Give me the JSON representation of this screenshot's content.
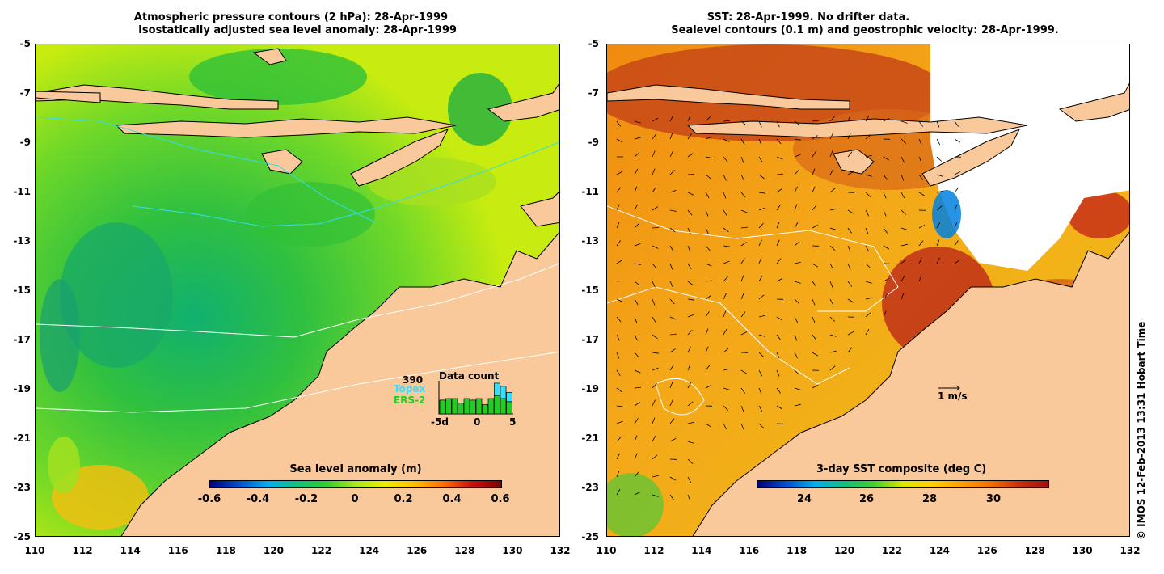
{
  "left_panel": {
    "title_line1": "Atmospheric pressure contours (2 hPa): 28-Apr-1999",
    "title_line2": "Isostatically adjusted sea level anomaly: 28-Apr-1999",
    "colorbar_title": "Sea level anomaly (m)",
    "colorbar_ticks": [
      "-0.6",
      "-0.4",
      "-0.2",
      "0",
      "0.2",
      "0.4",
      "0.6"
    ],
    "data_count": {
      "title": "Data count",
      "max_label": "390",
      "topex_label": "Topex",
      "ers2_label": "ERS-2",
      "x_ticks": [
        "-5d",
        "0",
        "5"
      ],
      "topex_values": [
        0,
        0,
        0,
        0,
        0,
        0,
        0,
        0,
        0,
        1.0,
        0.9,
        0.7
      ],
      "ers2_values": [
        0.45,
        0.5,
        0.5,
        0.35,
        0.5,
        0.45,
        0.5,
        0.3,
        0.5,
        0.6,
        0.5,
        0.4
      ],
      "colors": {
        "topex": "#33e0ff",
        "ers2": "#22cc22"
      }
    }
  },
  "right_panel": {
    "title_line1": "SST: 28-Apr-1999. No drifter data.",
    "title_line2": "Sealevel contours (0.1 m) and geostrophic velocity: 28-Apr-1999.",
    "colorbar_title": "3-day SST composite (deg C)",
    "colorbar_ticks": [
      "24",
      "26",
      "28",
      "30"
    ],
    "scale_arrow_label": "1 m/s"
  },
  "y_axis_ticks": [
    "-5",
    "-7",
    "-9",
    "-11",
    "-13",
    "-15",
    "-17",
    "-19",
    "-21",
    "-23",
    "-25"
  ],
  "x_axis_ticks": [
    "110",
    "112",
    "114",
    "116",
    "118",
    "120",
    "122",
    "124",
    "126",
    "128",
    "130",
    "132"
  ],
  "credit": "© IMOS 12-Feb-2013 13:31 Hobart Time",
  "colors": {
    "land": "#f9c89b",
    "sla_scale": [
      "#00007f",
      "#0050d0",
      "#00b0f0",
      "#10c080",
      "#30d030",
      "#a8e820",
      "#e8f000",
      "#ffc000",
      "#ff7000",
      "#c81010",
      "#7f0000"
    ],
    "sst_scale": [
      "#00007f",
      "#0050d0",
      "#00b0f0",
      "#10c080",
      "#40d030",
      "#d8e800",
      "#ffd000",
      "#ffa000",
      "#f07000",
      "#c83010",
      "#9c1010"
    ]
  }
}
